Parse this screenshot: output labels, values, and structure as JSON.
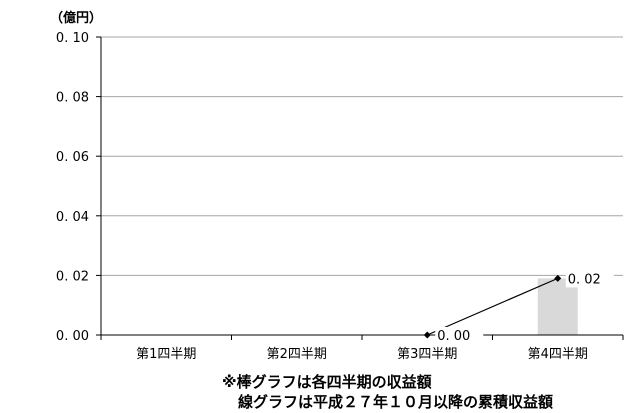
{
  "chart_data": {
    "type": "bar",
    "unit_label": "（億円）",
    "categories": [
      "第1四半期",
      "第2四半期",
      "第3四半期",
      "第4四半期"
    ],
    "y_ticks": [
      "0. 00",
      "0. 02",
      "0. 04",
      "0. 06",
      "0. 08",
      "0. 10"
    ],
    "ylim": [
      0,
      0.1
    ],
    "grid": true,
    "series": [
      {
        "type": "bar",
        "values": [
          null,
          null,
          null,
          0.019
        ],
        "color": "#d9d9d9"
      },
      {
        "type": "line",
        "values": [
          null,
          null,
          0.0,
          0.019
        ],
        "data_labels": [
          null,
          null,
          "0. 00",
          "0. 02"
        ],
        "color": "#000000"
      }
    ]
  },
  "notes": {
    "line1": "※棒グラフは各四半期の収益額",
    "line2": "線グラフは平成２７年１０月以降の累積収益額"
  }
}
